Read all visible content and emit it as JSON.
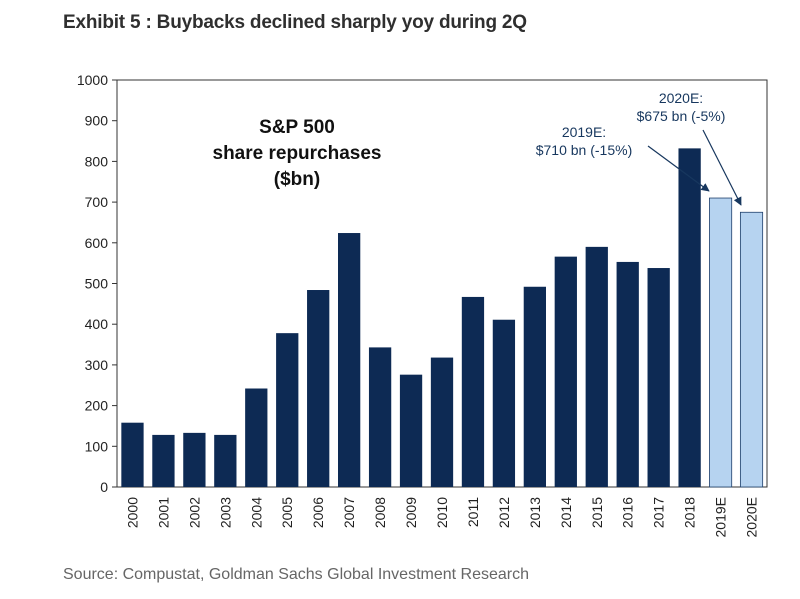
{
  "title": "Exhibit 5 : Buybacks declined sharply yoy during 2Q",
  "source": "Source: Compustat, Goldman Sachs Global Investment Research",
  "colors": {
    "actual": "#0d2a54",
    "estimate": "#b6d3f0",
    "estimate_border": "#1f3f6a",
    "callout_text": "#17375e"
  },
  "chart_data": {
    "type": "bar",
    "title": "S&P 500 share repurchases ($bn)",
    "title_lines": [
      "S&P 500",
      "share repurchases",
      "($bn)"
    ],
    "categories": [
      "2000",
      "2001",
      "2002",
      "2003",
      "2004",
      "2005",
      "2006",
      "2007",
      "2008",
      "2009",
      "2010",
      "2011",
      "2012",
      "2013",
      "2014",
      "2015",
      "2016",
      "2017",
      "2018",
      "2019E",
      "2020E"
    ],
    "values": [
      158,
      128,
      133,
      128,
      242,
      378,
      484,
      624,
      343,
      276,
      318,
      467,
      411,
      492,
      566,
      590,
      553,
      538,
      832,
      710,
      675
    ],
    "estimate": [
      false,
      false,
      false,
      false,
      false,
      false,
      false,
      false,
      false,
      false,
      false,
      false,
      false,
      false,
      false,
      false,
      false,
      false,
      false,
      true,
      true
    ],
    "ylim": [
      0,
      1000
    ],
    "yticks": [
      0,
      100,
      200,
      300,
      400,
      500,
      600,
      700,
      800,
      900,
      1000
    ],
    "xlabel": "",
    "ylabel": "",
    "grid": false,
    "annotations": [
      {
        "category": "2019E",
        "lines": [
          "2019E:",
          "$710 bn (-15%)"
        ]
      },
      {
        "category": "2020E",
        "lines": [
          "2020E:",
          "$675 bn (-5%)"
        ]
      }
    ]
  }
}
